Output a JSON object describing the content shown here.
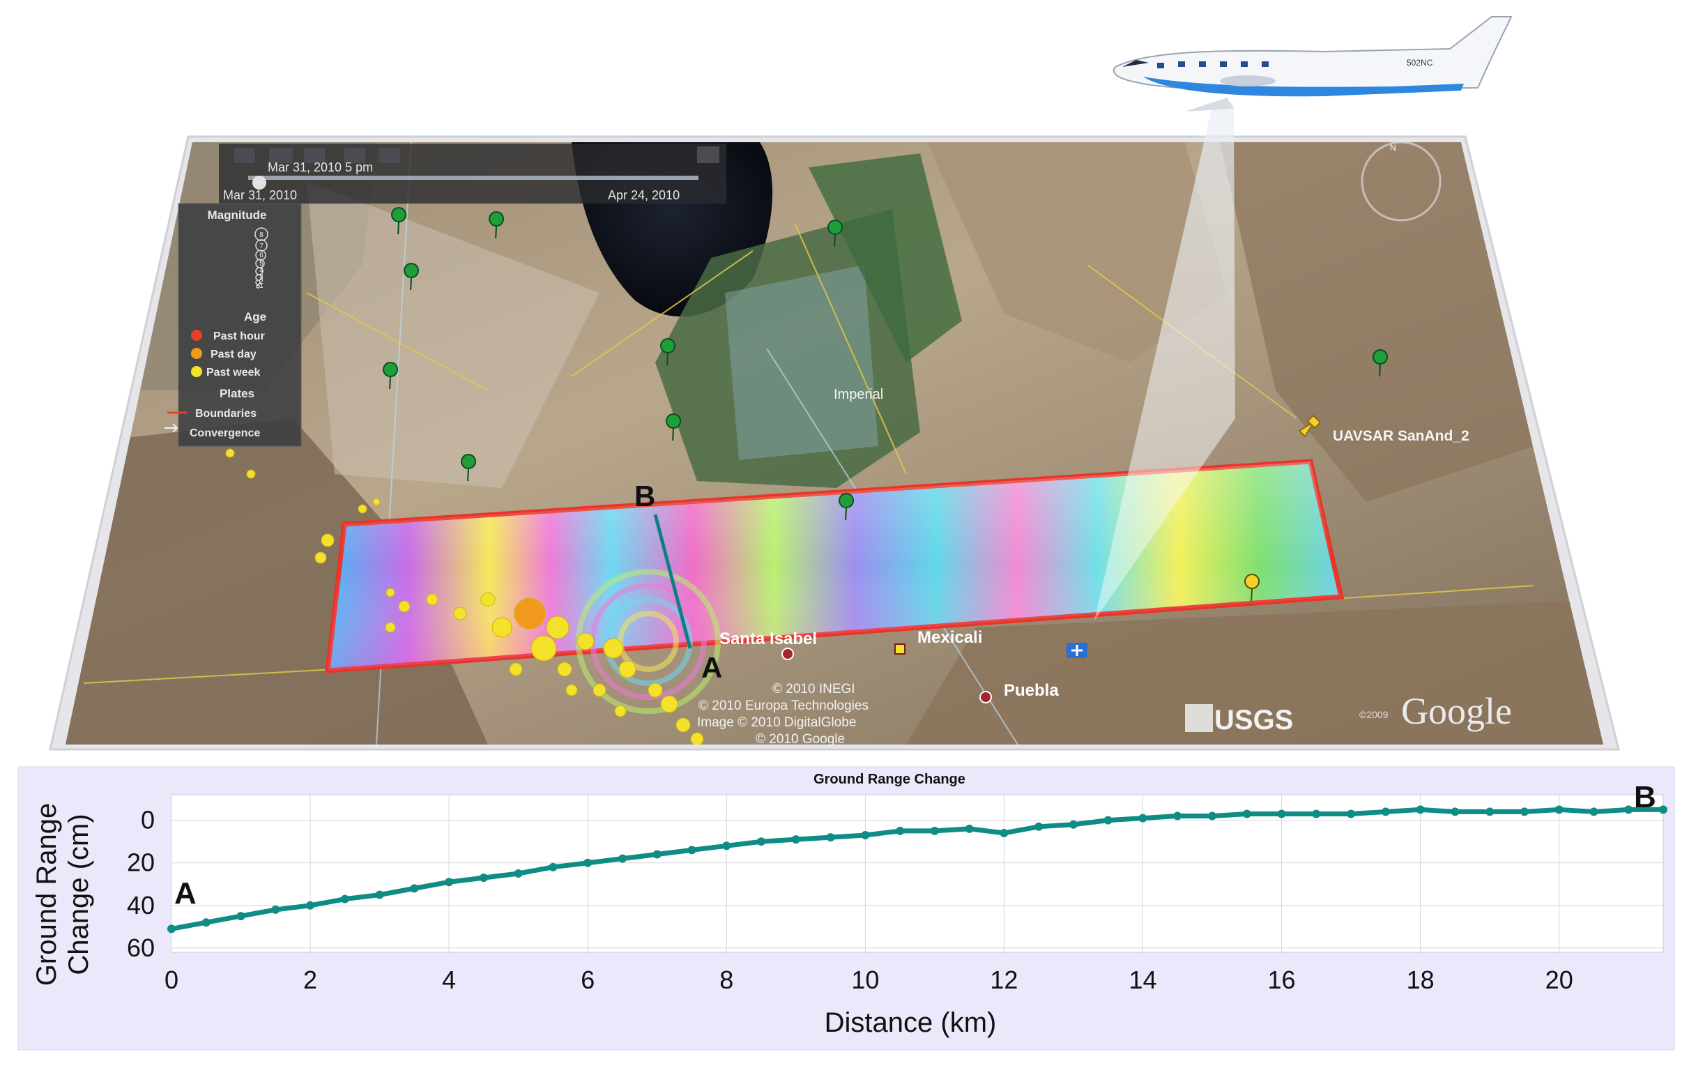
{
  "timeline": {
    "current": "Mar 31, 2010   5 pm",
    "start": "Mar 31, 2010",
    "end": "Apr 24, 2010"
  },
  "legend": {
    "magnitude_title": "Magnitude",
    "magnitude_values": [
      "8",
      "7",
      "6",
      "5",
      "4",
      "3",
      "2",
      "1"
    ],
    "age_title": "Age",
    "age_items": [
      {
        "label": "Past hour",
        "color": "#e8402a"
      },
      {
        "label": "Past day",
        "color": "#f39a1e"
      },
      {
        "label": "Past week",
        "color": "#f4e12a"
      }
    ],
    "plates_title": "Plates",
    "plate_items": [
      {
        "label": "Boundaries",
        "icon": "red-line-icon"
      },
      {
        "label": "Convergence",
        "icon": "arrow-right-icon"
      }
    ]
  },
  "map_labels": {
    "imperial": "Imperial",
    "uavsar": "UAVSAR SanAnd_2",
    "santa_isabel": "Santa Isabel",
    "mexicali": "Mexicali",
    "puebla": "Puebla",
    "point_a": "A",
    "point_b": "B",
    "compass": "N"
  },
  "attribution": [
    "© 2010 INEGI",
    "© 2010 Europa Technologies",
    "Image © 2010 DigitalGlobe",
    "© 2010 Google"
  ],
  "logos": {
    "usgs": "USGS",
    "google": "Google",
    "google_year": "©2009"
  },
  "aircraft": {
    "tail": "502NC"
  },
  "colors": {
    "swath_border": "#e8352a",
    "profile": "#0f8c86",
    "marker": "#1f9e3a"
  },
  "chart_data": {
    "type": "scatter",
    "title": "Ground Range Change",
    "xlabel": "Distance (km)",
    "ylabel": "Ground Range Change (cm)",
    "ylabel_lines": [
      "Ground Range",
      "Change (cm)"
    ],
    "xlim": [
      0,
      21.5
    ],
    "ylim": [
      -12,
      62
    ],
    "y_inverted": true,
    "xticks": [
      "0",
      "2",
      "4",
      "6",
      "8",
      "10",
      "12",
      "14",
      "16",
      "18",
      "20"
    ],
    "yticks": [
      "0",
      "20",
      "40",
      "60"
    ],
    "grid": true,
    "end_labels": {
      "left": "A",
      "right": "B"
    },
    "x": [
      0,
      0.5,
      1,
      1.5,
      2,
      2.5,
      3,
      3.5,
      4,
      4.5,
      5,
      5.5,
      6,
      6.5,
      7,
      7.5,
      8,
      8.5,
      9,
      9.5,
      10,
      10.5,
      11,
      11.5,
      12,
      12.5,
      13,
      13.5,
      14,
      14.5,
      15,
      15.5,
      16,
      16.5,
      17,
      17.5,
      18,
      18.5,
      19,
      19.5,
      20,
      20.5,
      21,
      21.5
    ],
    "values": [
      51,
      48,
      45,
      42,
      40,
      37,
      35,
      32,
      29,
      27,
      25,
      22,
      20,
      18,
      16,
      14,
      12,
      10,
      9,
      8,
      7,
      5,
      5,
      4,
      6,
      3,
      2,
      0,
      -1,
      -2,
      -2,
      -3,
      -3,
      -3,
      -3,
      -4,
      -5,
      -4,
      -4,
      -4,
      -5,
      -4,
      -5,
      -5
    ]
  }
}
